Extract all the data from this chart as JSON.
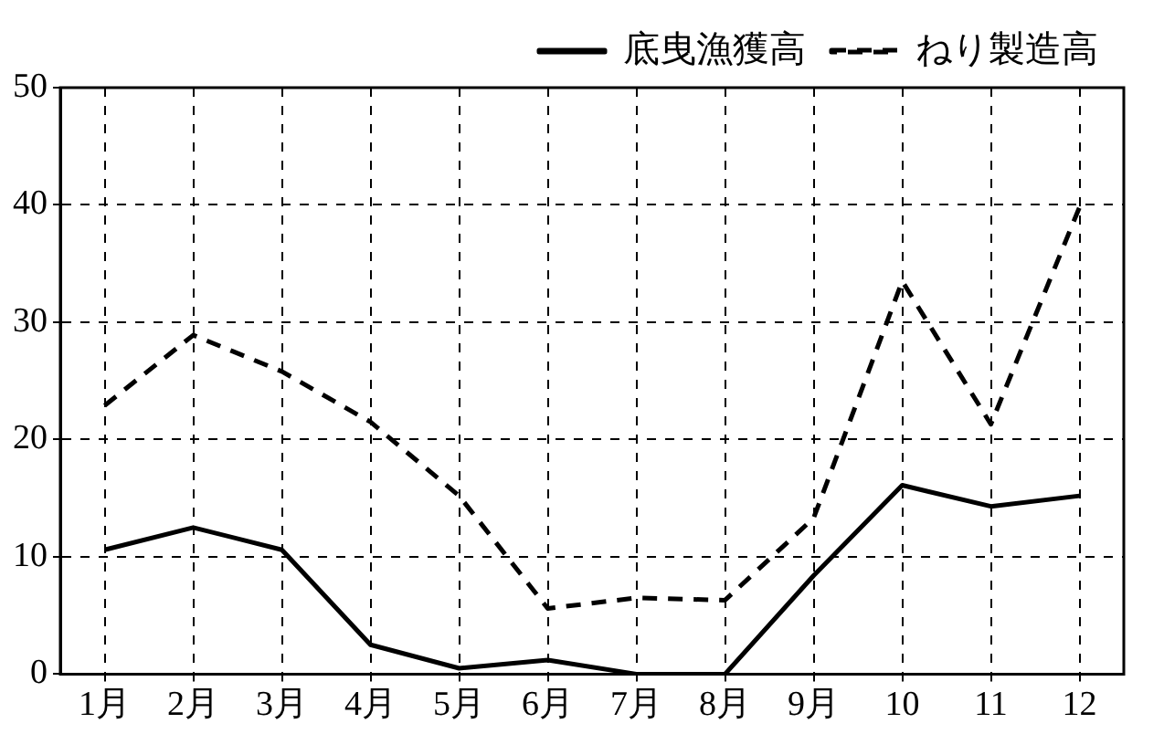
{
  "chart_data": {
    "type": "line",
    "categories": [
      "1月",
      "2月",
      "3月",
      "4月",
      "5月",
      "6月",
      "7月",
      "8月",
      "9月",
      "10",
      "11",
      "12"
    ],
    "series": [
      {
        "name": "底曳漁獲高",
        "color": "#000000",
        "line_style": "solid",
        "values": [
          10.6,
          12.5,
          10.6,
          2.5,
          0.5,
          1.2,
          0,
          0,
          8.4,
          16.1,
          14.3,
          15.2
        ]
      },
      {
        "name": "ねり製造高",
        "color": "#000000",
        "line_style": "dashed",
        "values": [
          22.9,
          28.9,
          25.8,
          21.5,
          15.2,
          5.6,
          6.5,
          6.3,
          13.3,
          33.5,
          21.3,
          39.8
        ]
      }
    ],
    "ylim": [
      0,
      50
    ],
    "yticks": [
      0,
      10,
      20,
      30,
      40,
      50
    ],
    "grid": true,
    "legend": "top right",
    "marker": "none"
  }
}
